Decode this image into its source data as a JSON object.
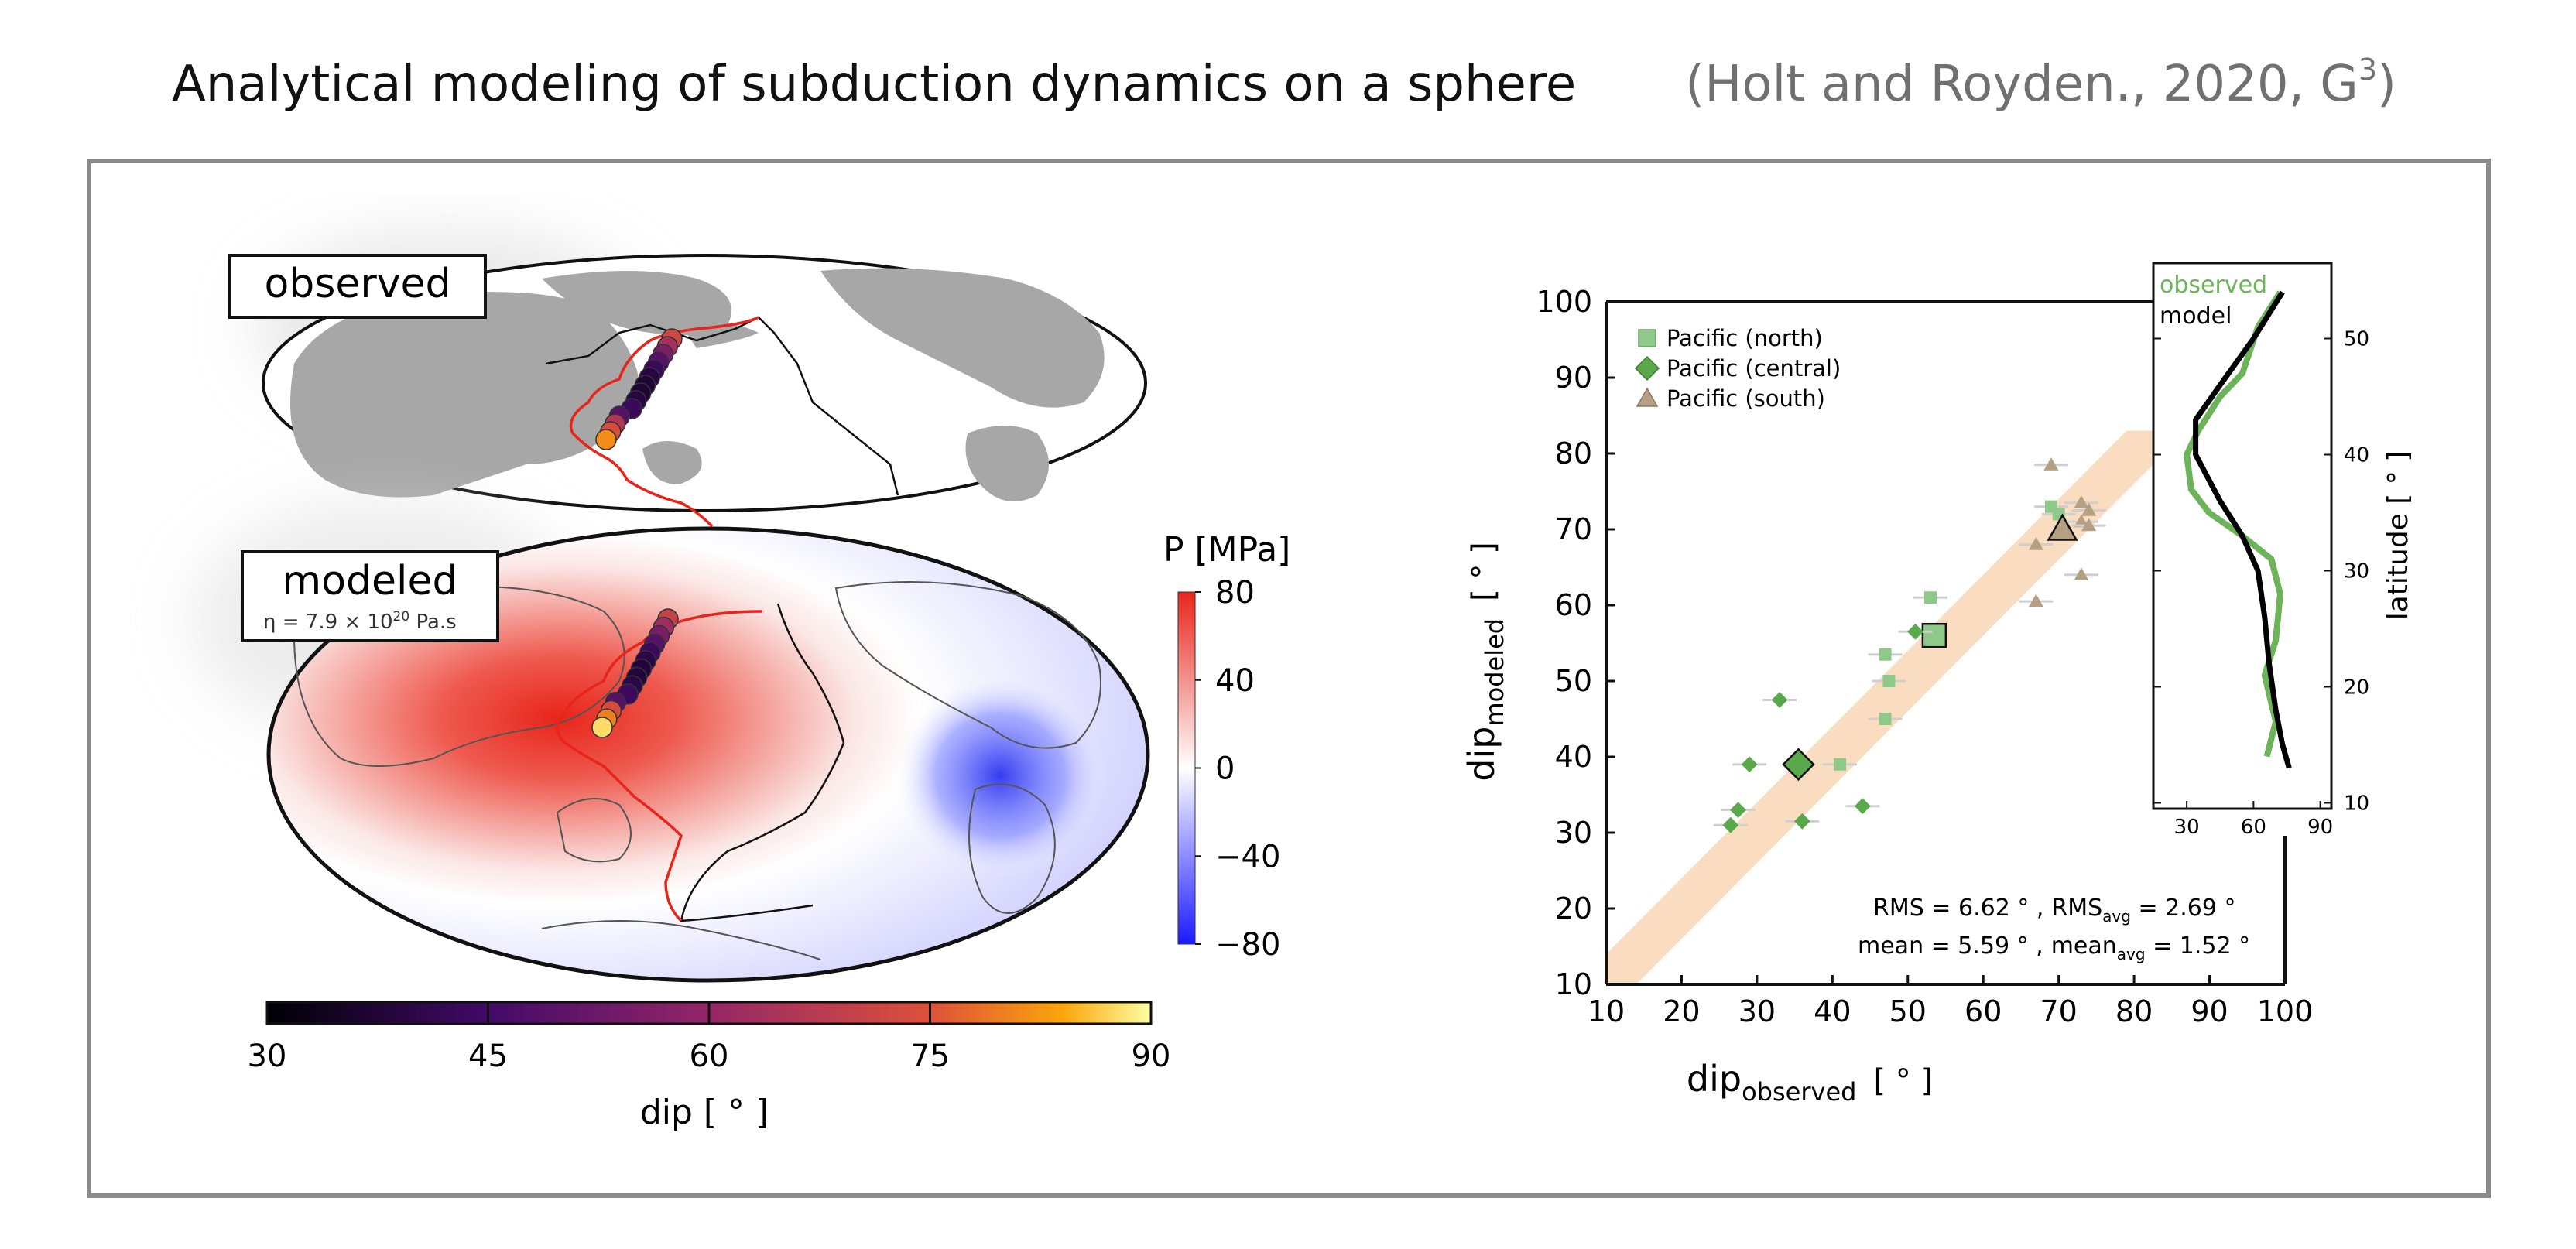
{
  "header": {
    "title": "Analytical modeling of subduction dynamics on a sphere",
    "citation_main": "(Holt and Royden., 2020, G",
    "citation_sup": "3",
    "citation_end": ")"
  },
  "maps": {
    "observed_label": "observed",
    "modeled_label": "modeled",
    "viscosity_label": "η = 7.9 × 10",
    "viscosity_exp": "20",
    "viscosity_unit": " Pa.s"
  },
  "pressure_colorbar": {
    "title": "P  [MPa]",
    "ticks": [
      "80",
      "40",
      "0",
      "−40",
      "−80"
    ],
    "colors": {
      "positive": "#e8251b",
      "zero": "#ffffff",
      "negative": "#1a1aff"
    }
  },
  "dip_colorbar": {
    "ticks": [
      "30",
      "45",
      "60",
      "75",
      "90"
    ],
    "label": "dip [ ° ]"
  },
  "chart_data": [
    {
      "type": "scatter",
      "xlabel_main": "dip",
      "xlabel_sub": "observed",
      "xlabel_unit": "[ ° ]",
      "ylabel_main": "dip",
      "ylabel_sub": "modeled",
      "ylabel_unit": "[ ° ]",
      "xlim": [
        10,
        100
      ],
      "ylim": [
        10,
        100
      ],
      "xticks": [
        "10",
        "20",
        "30",
        "40",
        "50",
        "60",
        "70",
        "80",
        "90",
        "100"
      ],
      "yticks": [
        "10",
        "20",
        "30",
        "40",
        "50",
        "60",
        "70",
        "80",
        "90",
        "100"
      ],
      "legend": [
        {
          "name": "Pacific (north)",
          "marker": "square",
          "color": "#8fc98a"
        },
        {
          "name": "Pacific (central)",
          "marker": "diamond",
          "color": "#5aa84c"
        },
        {
          "name": "Pacific (south)",
          "marker": "triangle",
          "color": "#b5a084"
        }
      ],
      "series": [
        {
          "name": "Pacific (north)",
          "marker": "square",
          "color": "#8fc98a",
          "points": [
            [
              41,
              39
            ],
            [
              47,
              45
            ],
            [
              47.5,
              50
            ],
            [
              47,
              53.5
            ],
            [
              53,
              61
            ],
            [
              69,
              73
            ],
            [
              70,
              72
            ]
          ],
          "average": [
            53.5,
            56
          ]
        },
        {
          "name": "Pacific (central)",
          "marker": "diamond",
          "color": "#5aa84c",
          "points": [
            [
              26.5,
              31
            ],
            [
              27.5,
              33
            ],
            [
              29,
              39
            ],
            [
              33,
              47.5
            ],
            [
              36,
              31.5
            ],
            [
              44,
              33.5
            ],
            [
              51,
              56.5
            ]
          ],
          "average": [
            35.5,
            39
          ]
        },
        {
          "name": "Pacific (south)",
          "marker": "triangle",
          "color": "#b5a084",
          "points": [
            [
              67,
              60.5
            ],
            [
              67,
              68
            ],
            [
              69,
              78.5
            ],
            [
              73,
              64
            ],
            [
              73,
              71
            ],
            [
              73,
              73.5
            ],
            [
              74,
              70.5
            ],
            [
              74,
              72.5
            ]
          ],
          "average": [
            70.5,
            70
          ]
        }
      ],
      "stats": {
        "rms": "RMS = 6.62 ° ,",
        "rms_avg_label": "RMS",
        "rms_avg_sub": "avg",
        "rms_avg_value": " = 2.69 °",
        "mean": "mean = 5.59 ° ,",
        "mean_avg_label": "mean",
        "mean_avg_sub": "avg",
        "mean_avg_value": " = 1.52 °"
      }
    },
    {
      "type": "line",
      "xlim": [
        15,
        95
      ],
      "ylim": [
        10,
        55
      ],
      "xticks": [
        "30",
        "60",
        "90"
      ],
      "yticks": [
        "10",
        "20",
        "30",
        "40",
        "50"
      ],
      "ylabel": "latitude  [ ° ]",
      "series": [
        {
          "name": "observed",
          "color": "#6cb35a",
          "points": [
            [
              72,
              54
            ],
            [
              62,
              51
            ],
            [
              55,
              47
            ],
            [
              45,
              45
            ],
            [
              35,
              42
            ],
            [
              30,
              40
            ],
            [
              32,
              37
            ],
            [
              40,
              35
            ],
            [
              55,
              33
            ],
            [
              68,
              31
            ],
            [
              72,
              28
            ],
            [
              70,
              24
            ],
            [
              65,
              21
            ],
            [
              70,
              17
            ],
            [
              66,
              14
            ]
          ]
        },
        {
          "name": "model",
          "color": "#000000",
          "points": [
            [
              73,
              54
            ],
            [
              60,
              50
            ],
            [
              45,
              46
            ],
            [
              34,
              43
            ],
            [
              34,
              40
            ],
            [
              45,
              36
            ],
            [
              55,
              33
            ],
            [
              62,
              30
            ],
            [
              65,
              26
            ],
            [
              67,
              22
            ],
            [
              70,
              18
            ],
            [
              73,
              15
            ],
            [
              76,
              13
            ]
          ]
        }
      ]
    }
  ]
}
